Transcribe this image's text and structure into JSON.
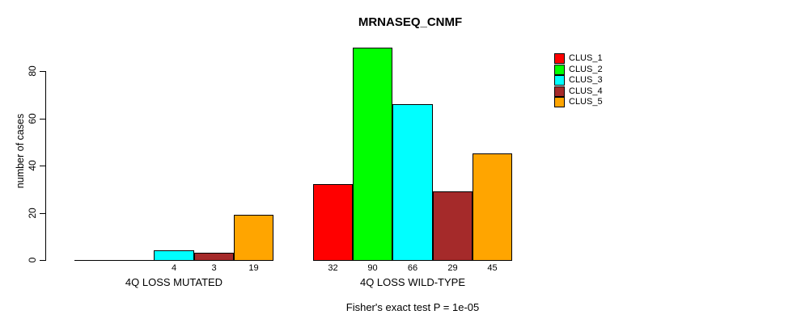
{
  "chart_data": {
    "type": "bar",
    "title": "MRNASEQ_CNMF",
    "ylabel": "number of cases",
    "xlabel": "",
    "ylim": [
      0,
      90
    ],
    "yticks": [
      0,
      20,
      40,
      60,
      80
    ],
    "grid": false,
    "legend_position": "top-right",
    "series": [
      "CLUS_1",
      "CLUS_2",
      "CLUS_3",
      "CLUS_4",
      "CLUS_5"
    ],
    "colors": [
      "#ff0000",
      "#00ff00",
      "#00ffff",
      "#a52a2a",
      "#ffa500"
    ],
    "categories": [
      "4Q LOSS MUTATED",
      "4Q LOSS WILD-TYPE"
    ],
    "groups": [
      {
        "label": "4Q LOSS MUTATED",
        "values": [
          0,
          0,
          4,
          3,
          19
        ],
        "value_labels": [
          "",
          "",
          "4",
          "3",
          "19"
        ]
      },
      {
        "label": "4Q LOSS WILD-TYPE",
        "values": [
          32,
          90,
          66,
          29,
          45
        ],
        "value_labels": [
          "32",
          "90",
          "66",
          "29",
          "45"
        ]
      }
    ],
    "annotation": "Fisher's exact test P = 1e-05",
    "axis_color": "#000000",
    "background_color": "#ffffff"
  }
}
